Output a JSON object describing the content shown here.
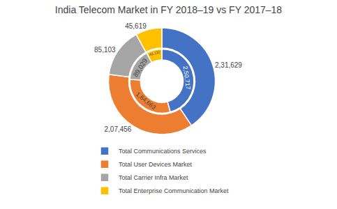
{
  "chart_data": {
    "type": "donut",
    "title": "India Telecom Market in FY 2018–19 vs FY 2017–18",
    "categories": [
      "Total Communications Services",
      "Total User Devices Market",
      "Total Carrier Infra Market",
      "Total Enterprise Communication Market"
    ],
    "series": [
      {
        "values": [
          231629,
          207456,
          85103,
          45619
        ],
        "value_labels": [
          "2,31,629",
          "2,07,456",
          "85,103",
          "45,619"
        ]
      },
      {
        "values": [
          250717,
          164663,
          89029,
          43132
        ],
        "value_labels": [
          "2,50,717",
          "1,64,663",
          "89,029",
          "43,132"
        ]
      }
    ],
    "colors": [
      "#4472C4",
      "#ED7D31",
      "#A5A5A5",
      "#FFC000"
    ],
    "data_labels": true,
    "legend": "bottom"
  }
}
